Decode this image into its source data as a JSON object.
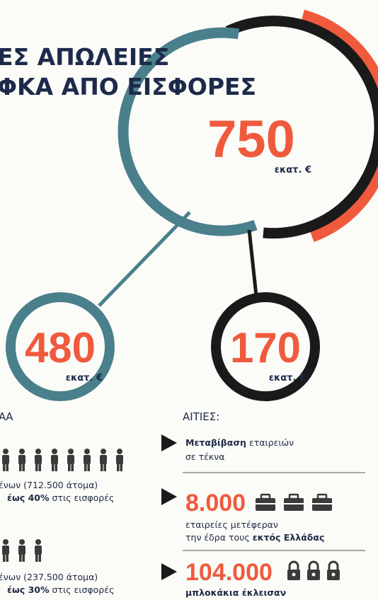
{
  "title": {
    "lines": [
      "ΕΣ ΑΠΩΛΕΙΕΣ",
      "ΦΚΑ ΑΠΟ ΕΙΣΦΟΡΕΣ"
    ]
  },
  "total": {
    "value": "750",
    "unit": "εκατ. €"
  },
  "left_circle": {
    "value": "480",
    "unit": "εκατ. €"
  },
  "right_circle": {
    "value": "170",
    "unit": "εκατ. €"
  },
  "left_section": {
    "heading": "ΑΑ",
    "groups": [
      {
        "line1": "ένων (712.500 άτομα)",
        "bold": "έως 40%",
        "rest": "στις εισφορές"
      },
      {
        "line1": "ένων (237.500 άτομα)",
        "bold": "έως 30%",
        "rest": "στις εισφορές"
      }
    ]
  },
  "causes": {
    "heading": "ΑΙΤΙΕΣ:",
    "items": [
      {
        "bold": "Μεταβίβαση",
        "text": "εταιρειών",
        "line2": "σε τέκνα"
      },
      {
        "number": "8.000",
        "line1": "εταιρείες μετέφεραν",
        "line2": "την έδρα τους",
        "line2_bold": "εκτός Ελλάδας"
      },
      {
        "number": "104.000",
        "bold": "μπλοκάκια έκλεισαν"
      }
    ]
  }
}
